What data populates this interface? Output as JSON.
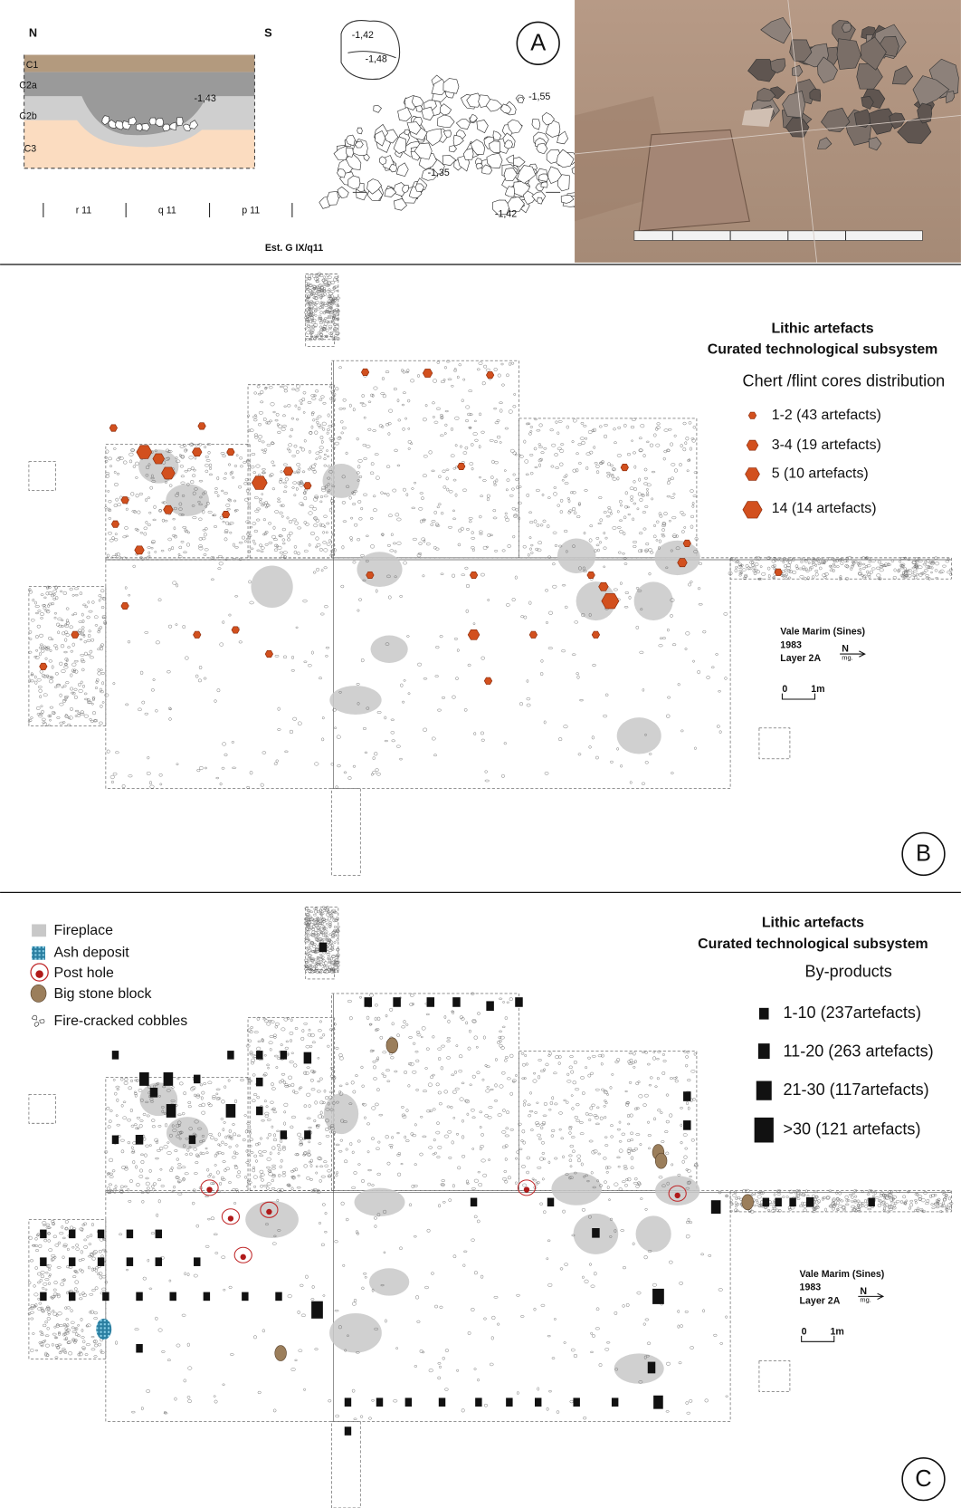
{
  "panel_a": {
    "label": "A",
    "section": {
      "north": "N",
      "south": "S",
      "layers": [
        "C1",
        "C2a",
        "C2b",
        "C3"
      ],
      "depth": "-1,43",
      "squares": [
        "r 11",
        "q 11",
        "p 11"
      ],
      "caption": "Est. G IX/q11"
    },
    "plan_depths": [
      "-1,42",
      "-1,48",
      "-1,55",
      "-1,35",
      "-1,42"
    ]
  },
  "panel_b": {
    "label": "B",
    "title": [
      "Lithic artefacts",
      "Curated technological subsystem"
    ],
    "subtitle": "Chert /flint cores distribution",
    "legend": [
      "1-2 (43 artefacts)",
      "3-4 (19 artefacts)",
      "5 (10 artefacts)",
      "14 (14 artefacts)"
    ],
    "site": [
      "Vale Marim (Sines)",
      "1983",
      "Layer 2A"
    ],
    "north": "N",
    "north_sub": "mg.",
    "scale": [
      "0",
      "1m"
    ]
  },
  "panel_c": {
    "label": "C",
    "key": [
      "Fireplace",
      "Ash deposit",
      "Post hole",
      "Big stone block",
      "Fire-cracked cobbles"
    ],
    "title": [
      "Lithic artefacts",
      "Curated technological subsystem"
    ],
    "subtitle": "By-products",
    "legend": [
      "1-10 (237artefacts)",
      "11-20 (263 artefacts)",
      "21-30 (117artefacts)",
      ">30 (121 artefacts)"
    ],
    "site": [
      "Vale Marim (Sines)",
      "1983",
      "Layer 2A"
    ],
    "north": "N",
    "north_sub": "mg.",
    "scale": [
      "0",
      "1m"
    ]
  }
}
